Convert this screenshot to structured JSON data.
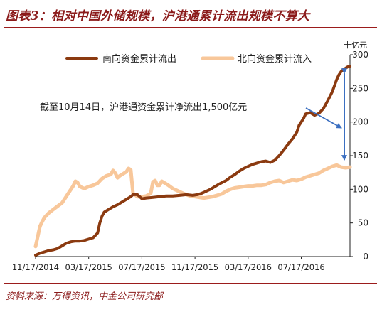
{
  "header": {
    "title": "图表3：相对中国外储规模，沪港通累计流出规模不算大"
  },
  "footer": {
    "source": "资料来源：万得资讯，中金公司研究部"
  },
  "colors": {
    "south": "#8B3A10",
    "north": "#F8C79A",
    "arrow": "#3B6FC1",
    "title": "#8B1A1A"
  },
  "chart_data": {
    "type": "line",
    "unit_label": "十亿元",
    "ylim": [
      0,
      300
    ],
    "y_ticks": [
      "0",
      "50",
      "100",
      "150",
      "200",
      "250",
      "300"
    ],
    "x_ticks": [
      "11/17/2014",
      "03/17/2015",
      "07/17/2015",
      "11/17/2015",
      "03/17/2016",
      "07/17/2016"
    ],
    "legend_position": "top",
    "annotation": "截至10月14日，沪港通资金累计净流出1,500亿元",
    "series": [
      {
        "name": "南向资金累计流出",
        "values": [
          [
            0,
            2
          ],
          [
            2,
            5
          ],
          [
            4,
            7
          ],
          [
            6,
            9
          ],
          [
            8,
            10
          ],
          [
            10,
            12
          ],
          [
            12,
            16
          ],
          [
            14,
            20
          ],
          [
            16,
            22
          ],
          [
            18,
            23
          ],
          [
            20,
            23
          ],
          [
            22,
            24
          ],
          [
            24,
            26
          ],
          [
            26,
            28
          ],
          [
            28,
            35
          ],
          [
            29,
            50
          ],
          [
            30,
            60
          ],
          [
            31,
            66
          ],
          [
            33,
            70
          ],
          [
            35,
            74
          ],
          [
            37,
            77
          ],
          [
            39,
            81
          ],
          [
            41,
            85
          ],
          [
            43,
            89
          ],
          [
            44,
            92
          ],
          [
            46,
            92
          ],
          [
            47,
            89
          ],
          [
            48,
            86
          ],
          [
            50,
            87
          ],
          [
            53,
            88
          ],
          [
            56,
            89
          ],
          [
            59,
            90
          ],
          [
            62,
            90
          ],
          [
            65,
            91
          ],
          [
            68,
            92
          ],
          [
            71,
            91
          ],
          [
            73,
            92
          ],
          [
            75,
            94
          ],
          [
            77,
            97
          ],
          [
            79,
            100
          ],
          [
            81,
            104
          ],
          [
            83,
            108
          ],
          [
            86,
            113
          ],
          [
            88,
            118
          ],
          [
            90,
            122
          ],
          [
            92,
            127
          ],
          [
            94,
            131
          ],
          [
            96,
            134
          ],
          [
            98,
            137
          ],
          [
            100,
            139
          ],
          [
            102,
            141
          ],
          [
            104,
            142
          ],
          [
            106,
            140
          ],
          [
            108,
            143
          ],
          [
            110,
            150
          ],
          [
            112,
            158
          ],
          [
            114,
            167
          ],
          [
            116,
            175
          ],
          [
            118,
            185
          ],
          [
            119,
            195
          ],
          [
            121,
            205
          ],
          [
            122,
            212
          ],
          [
            124,
            214
          ],
          [
            126,
            210
          ],
          [
            128,
            213
          ],
          [
            130,
            220
          ],
          [
            132,
            232
          ],
          [
            134,
            245
          ],
          [
            136,
            263
          ],
          [
            137,
            270
          ],
          [
            138,
            275
          ],
          [
            139,
            278
          ],
          [
            140,
            280
          ],
          [
            141,
            282
          ],
          [
            142,
            283
          ]
        ]
      },
      {
        "name": "北向资金累计流入",
        "values": [
          [
            0,
            15
          ],
          [
            1,
            30
          ],
          [
            2,
            45
          ],
          [
            3,
            52
          ],
          [
            4,
            58
          ],
          [
            6,
            65
          ],
          [
            8,
            70
          ],
          [
            10,
            75
          ],
          [
            12,
            80
          ],
          [
            14,
            90
          ],
          [
            16,
            100
          ],
          [
            17,
            105
          ],
          [
            18,
            112
          ],
          [
            19,
            110
          ],
          [
            20,
            104
          ],
          [
            22,
            101
          ],
          [
            24,
            104
          ],
          [
            26,
            106
          ],
          [
            28,
            109
          ],
          [
            30,
            116
          ],
          [
            32,
            120
          ],
          [
            34,
            122
          ],
          [
            35,
            128
          ],
          [
            36,
            124
          ],
          [
            37,
            117
          ],
          [
            38,
            120
          ],
          [
            39,
            122
          ],
          [
            40,
            124
          ],
          [
            41,
            126
          ],
          [
            42,
            131
          ],
          [
            43,
            129
          ],
          [
            44,
            94
          ],
          [
            46,
            89
          ],
          [
            48,
            89
          ],
          [
            50,
            90
          ],
          [
            52,
            94
          ],
          [
            53,
            111
          ],
          [
            54,
            113
          ],
          [
            55,
            106
          ],
          [
            56,
            106
          ],
          [
            57,
            112
          ],
          [
            58,
            110
          ],
          [
            60,
            106
          ],
          [
            62,
            101
          ],
          [
            64,
            98
          ],
          [
            66,
            95
          ],
          [
            68,
            92
          ],
          [
            70,
            90
          ],
          [
            72,
            89
          ],
          [
            74,
            88
          ],
          [
            76,
            87
          ],
          [
            78,
            88
          ],
          [
            80,
            89
          ],
          [
            82,
            91
          ],
          [
            84,
            93
          ],
          [
            86,
            97
          ],
          [
            88,
            100
          ],
          [
            90,
            102
          ],
          [
            92,
            103
          ],
          [
            94,
            104
          ],
          [
            96,
            105
          ],
          [
            98,
            105
          ],
          [
            100,
            106
          ],
          [
            102,
            106
          ],
          [
            104,
            107
          ],
          [
            106,
            110
          ],
          [
            108,
            112
          ],
          [
            110,
            113
          ],
          [
            112,
            110
          ],
          [
            114,
            112
          ],
          [
            116,
            114
          ],
          [
            118,
            113
          ],
          [
            120,
            115
          ],
          [
            122,
            118
          ],
          [
            124,
            120
          ],
          [
            126,
            122
          ],
          [
            128,
            124
          ],
          [
            130,
            128
          ],
          [
            132,
            131
          ],
          [
            134,
            134
          ],
          [
            136,
            136
          ],
          [
            138,
            133
          ],
          [
            140,
            132
          ],
          [
            142,
            133
          ]
        ]
      }
    ]
  }
}
